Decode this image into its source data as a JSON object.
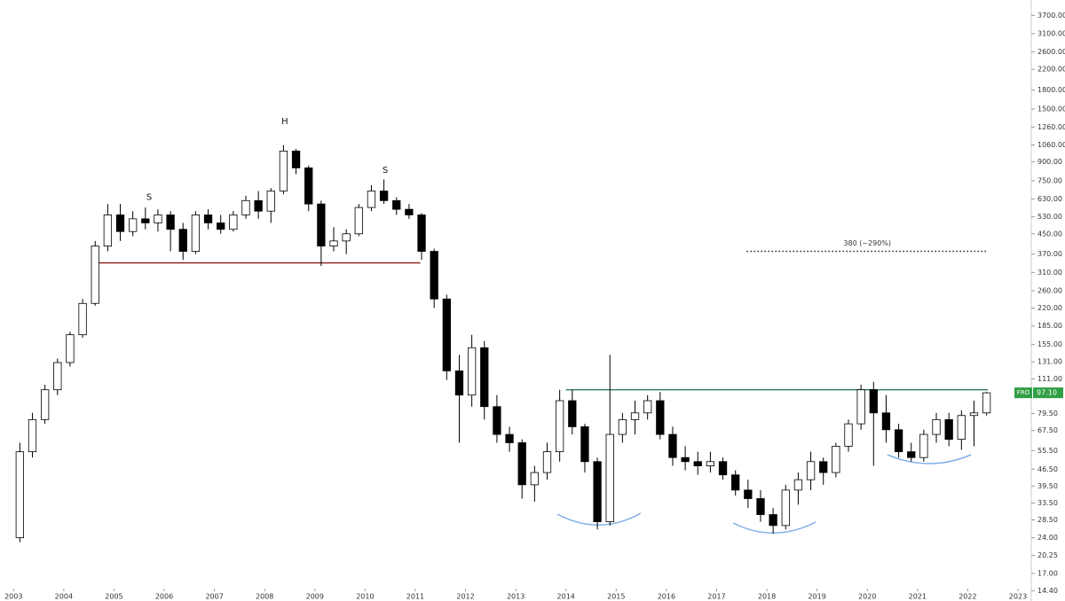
{
  "chart_data": {
    "type": "candlestick",
    "symbol": "FRO",
    "last_price": {
      "value": 97.1,
      "label": "97.10"
    },
    "last_price_color": "#2f9e44",
    "x": [
      2003.125,
      2003.375,
      2003.625,
      2003.875,
      2004.125,
      2004.375,
      2004.625,
      2004.875,
      2005.125,
      2005.375,
      2005.625,
      2005.875,
      2006.125,
      2006.375,
      2006.625,
      2006.875,
      2007.125,
      2007.375,
      2007.625,
      2007.875,
      2008.125,
      2008.375,
      2008.625,
      2008.875,
      2009.125,
      2009.375,
      2009.625,
      2009.875,
      2010.125,
      2010.375,
      2010.625,
      2010.875,
      2011.125,
      2011.375,
      2011.625,
      2011.875,
      2012.125,
      2012.375,
      2012.625,
      2012.875,
      2013.125,
      2013.375,
      2013.625,
      2013.875,
      2014.125,
      2014.375,
      2014.625,
      2014.875,
      2015.125,
      2015.375,
      2015.625,
      2015.875,
      2016.125,
      2016.375,
      2016.625,
      2016.875,
      2017.125,
      2017.375,
      2017.625,
      2017.875,
      2018.125,
      2018.375,
      2018.625,
      2018.875,
      2019.125,
      2019.375,
      2019.625,
      2019.875,
      2020.125,
      2020.375,
      2020.625,
      2020.875,
      2021.125,
      2021.375,
      2021.625,
      2021.875,
      2022.125,
      2022.375
    ],
    "open": [
      24,
      55,
      75,
      100,
      130,
      170,
      230,
      400,
      540,
      460,
      520,
      500,
      540,
      470,
      380,
      540,
      500,
      470,
      540,
      620,
      560,
      680,
      1000,
      850,
      600,
      400,
      420,
      450,
      580,
      680,
      620,
      570,
      540,
      380,
      240,
      120,
      95,
      150,
      85,
      65,
      60,
      40,
      45,
      55,
      90,
      70,
      50,
      28,
      65,
      75,
      80,
      90,
      65,
      52,
      50,
      48,
      50,
      44,
      38,
      35,
      30,
      27,
      38,
      42,
      50,
      45,
      58,
      72,
      100,
      80,
      68,
      55,
      52,
      65,
      75,
      62,
      78,
      80
    ],
    "high": [
      60,
      80,
      105,
      135,
      175,
      240,
      420,
      600,
      600,
      560,
      580,
      570,
      560,
      500,
      560,
      570,
      540,
      560,
      650,
      680,
      700,
      1060,
      1020,
      870,
      620,
      480,
      470,
      600,
      720,
      760,
      640,
      600,
      550,
      390,
      250,
      140,
      170,
      160,
      95,
      70,
      62,
      48,
      60,
      100,
      100,
      72,
      52,
      140,
      80,
      90,
      95,
      98,
      70,
      58,
      55,
      55,
      52,
      46,
      42,
      38,
      32,
      40,
      45,
      55,
      52,
      60,
      75,
      105,
      108,
      95,
      72,
      60,
      68,
      80,
      80,
      82,
      90,
      98
    ],
    "low": [
      23,
      52,
      72,
      95,
      125,
      165,
      225,
      380,
      420,
      440,
      470,
      460,
      380,
      350,
      370,
      470,
      450,
      460,
      520,
      520,
      500,
      660,
      800,
      560,
      330,
      380,
      370,
      440,
      560,
      600,
      540,
      520,
      350,
      220,
      110,
      60,
      85,
      75,
      60,
      55,
      35,
      34,
      42,
      50,
      65,
      45,
      26,
      27,
      60,
      65,
      75,
      62,
      48,
      46,
      44,
      45,
      42,
      36,
      32,
      28,
      25,
      26,
      33,
      38,
      40,
      43,
      55,
      68,
      48,
      60,
      52,
      50,
      50,
      60,
      58,
      56,
      58,
      78
    ],
    "close": [
      55,
      75,
      100,
      130,
      170,
      230,
      400,
      540,
      460,
      520,
      500,
      540,
      470,
      380,
      540,
      500,
      470,
      540,
      620,
      560,
      680,
      1000,
      850,
      600,
      400,
      420,
      450,
      580,
      680,
      620,
      570,
      540,
      380,
      240,
      120,
      95,
      150,
      85,
      65,
      60,
      40,
      45,
      55,
      90,
      70,
      50,
      28,
      65,
      75,
      80,
      90,
      65,
      52,
      50,
      48,
      50,
      44,
      38,
      35,
      30,
      27,
      38,
      42,
      50,
      45,
      58,
      72,
      100,
      80,
      68,
      55,
      52,
      65,
      75,
      62,
      78,
      80,
      97.1
    ],
    "up_color": "#ffffff",
    "down_color": "#000000",
    "log_scale": true,
    "xlim": [
      2002.73,
      2023.23
    ],
    "xticks": [
      2003,
      2004,
      2005,
      2006,
      2007,
      2008,
      2009,
      2010,
      2011,
      2012,
      2013,
      2014,
      2015,
      2016,
      2017,
      2018,
      2019,
      2020,
      2021,
      2022,
      2023
    ],
    "ylim": [
      14.2,
      3940
    ],
    "yticks": [
      {
        "value": 14.4,
        "label": "14.40"
      },
      {
        "value": 17,
        "label": "17.00"
      },
      {
        "value": 20.25,
        "label": "20.25"
      },
      {
        "value": 24,
        "label": "24.00"
      },
      {
        "value": 28.5,
        "label": "28.50"
      },
      {
        "value": 33.5,
        "label": "33.50"
      },
      {
        "value": 39.5,
        "label": "39.50"
      },
      {
        "value": 46.5,
        "label": "46.50"
      },
      {
        "value": 55.5,
        "label": "55.50"
      },
      {
        "value": 67.5,
        "label": "67.50"
      },
      {
        "value": 79.5,
        "label": "79.50"
      },
      {
        "value": 111,
        "label": "111.00"
      },
      {
        "value": 131,
        "label": "131.00"
      },
      {
        "value": 155,
        "label": "155.00"
      },
      {
        "value": 185,
        "label": "185.00"
      },
      {
        "value": 220,
        "label": "220.00"
      },
      {
        "value": 260,
        "label": "260.00"
      },
      {
        "value": 310,
        "label": "310.00"
      },
      {
        "value": 370,
        "label": "370.00"
      },
      {
        "value": 450,
        "label": "450.00"
      },
      {
        "value": 530,
        "label": "530.00"
      },
      {
        "value": 630,
        "label": "630.00"
      },
      {
        "value": 750,
        "label": "750.00"
      },
      {
        "value": 900,
        "label": "900.00"
      },
      {
        "value": 1060,
        "label": "1060.00"
      },
      {
        "value": 1260,
        "label": "1260.00"
      },
      {
        "value": 1500,
        "label": "1500.00"
      },
      {
        "value": 1800,
        "label": "1800.00"
      },
      {
        "value": 2200,
        "label": "2200.00"
      },
      {
        "value": 2600,
        "label": "2600.00"
      },
      {
        "value": 3100,
        "label": "3100.00"
      },
      {
        "value": 3700,
        "label": "3700.00"
      }
    ],
    "hlines": [
      {
        "value": 340,
        "x": [
          2004.6,
          2011.1
        ],
        "color": "#8b1a1a",
        "style": "solid"
      },
      {
        "value": 100,
        "x": [
          2014.0,
          2022.4
        ],
        "color": "#2e7d5b",
        "style": "solid"
      },
      {
        "value": 380,
        "x": [
          2017.6,
          2022.4
        ],
        "color": "#222222",
        "style": "dotted",
        "label": "380 (~290%)"
      }
    ],
    "annotations": [
      {
        "text": "S",
        "x": 2005.7,
        "y": 640
      },
      {
        "text": "H",
        "x": 2008.4,
        "y": 1330
      },
      {
        "text": "S",
        "x": 2010.4,
        "y": 830
      }
    ]
  }
}
